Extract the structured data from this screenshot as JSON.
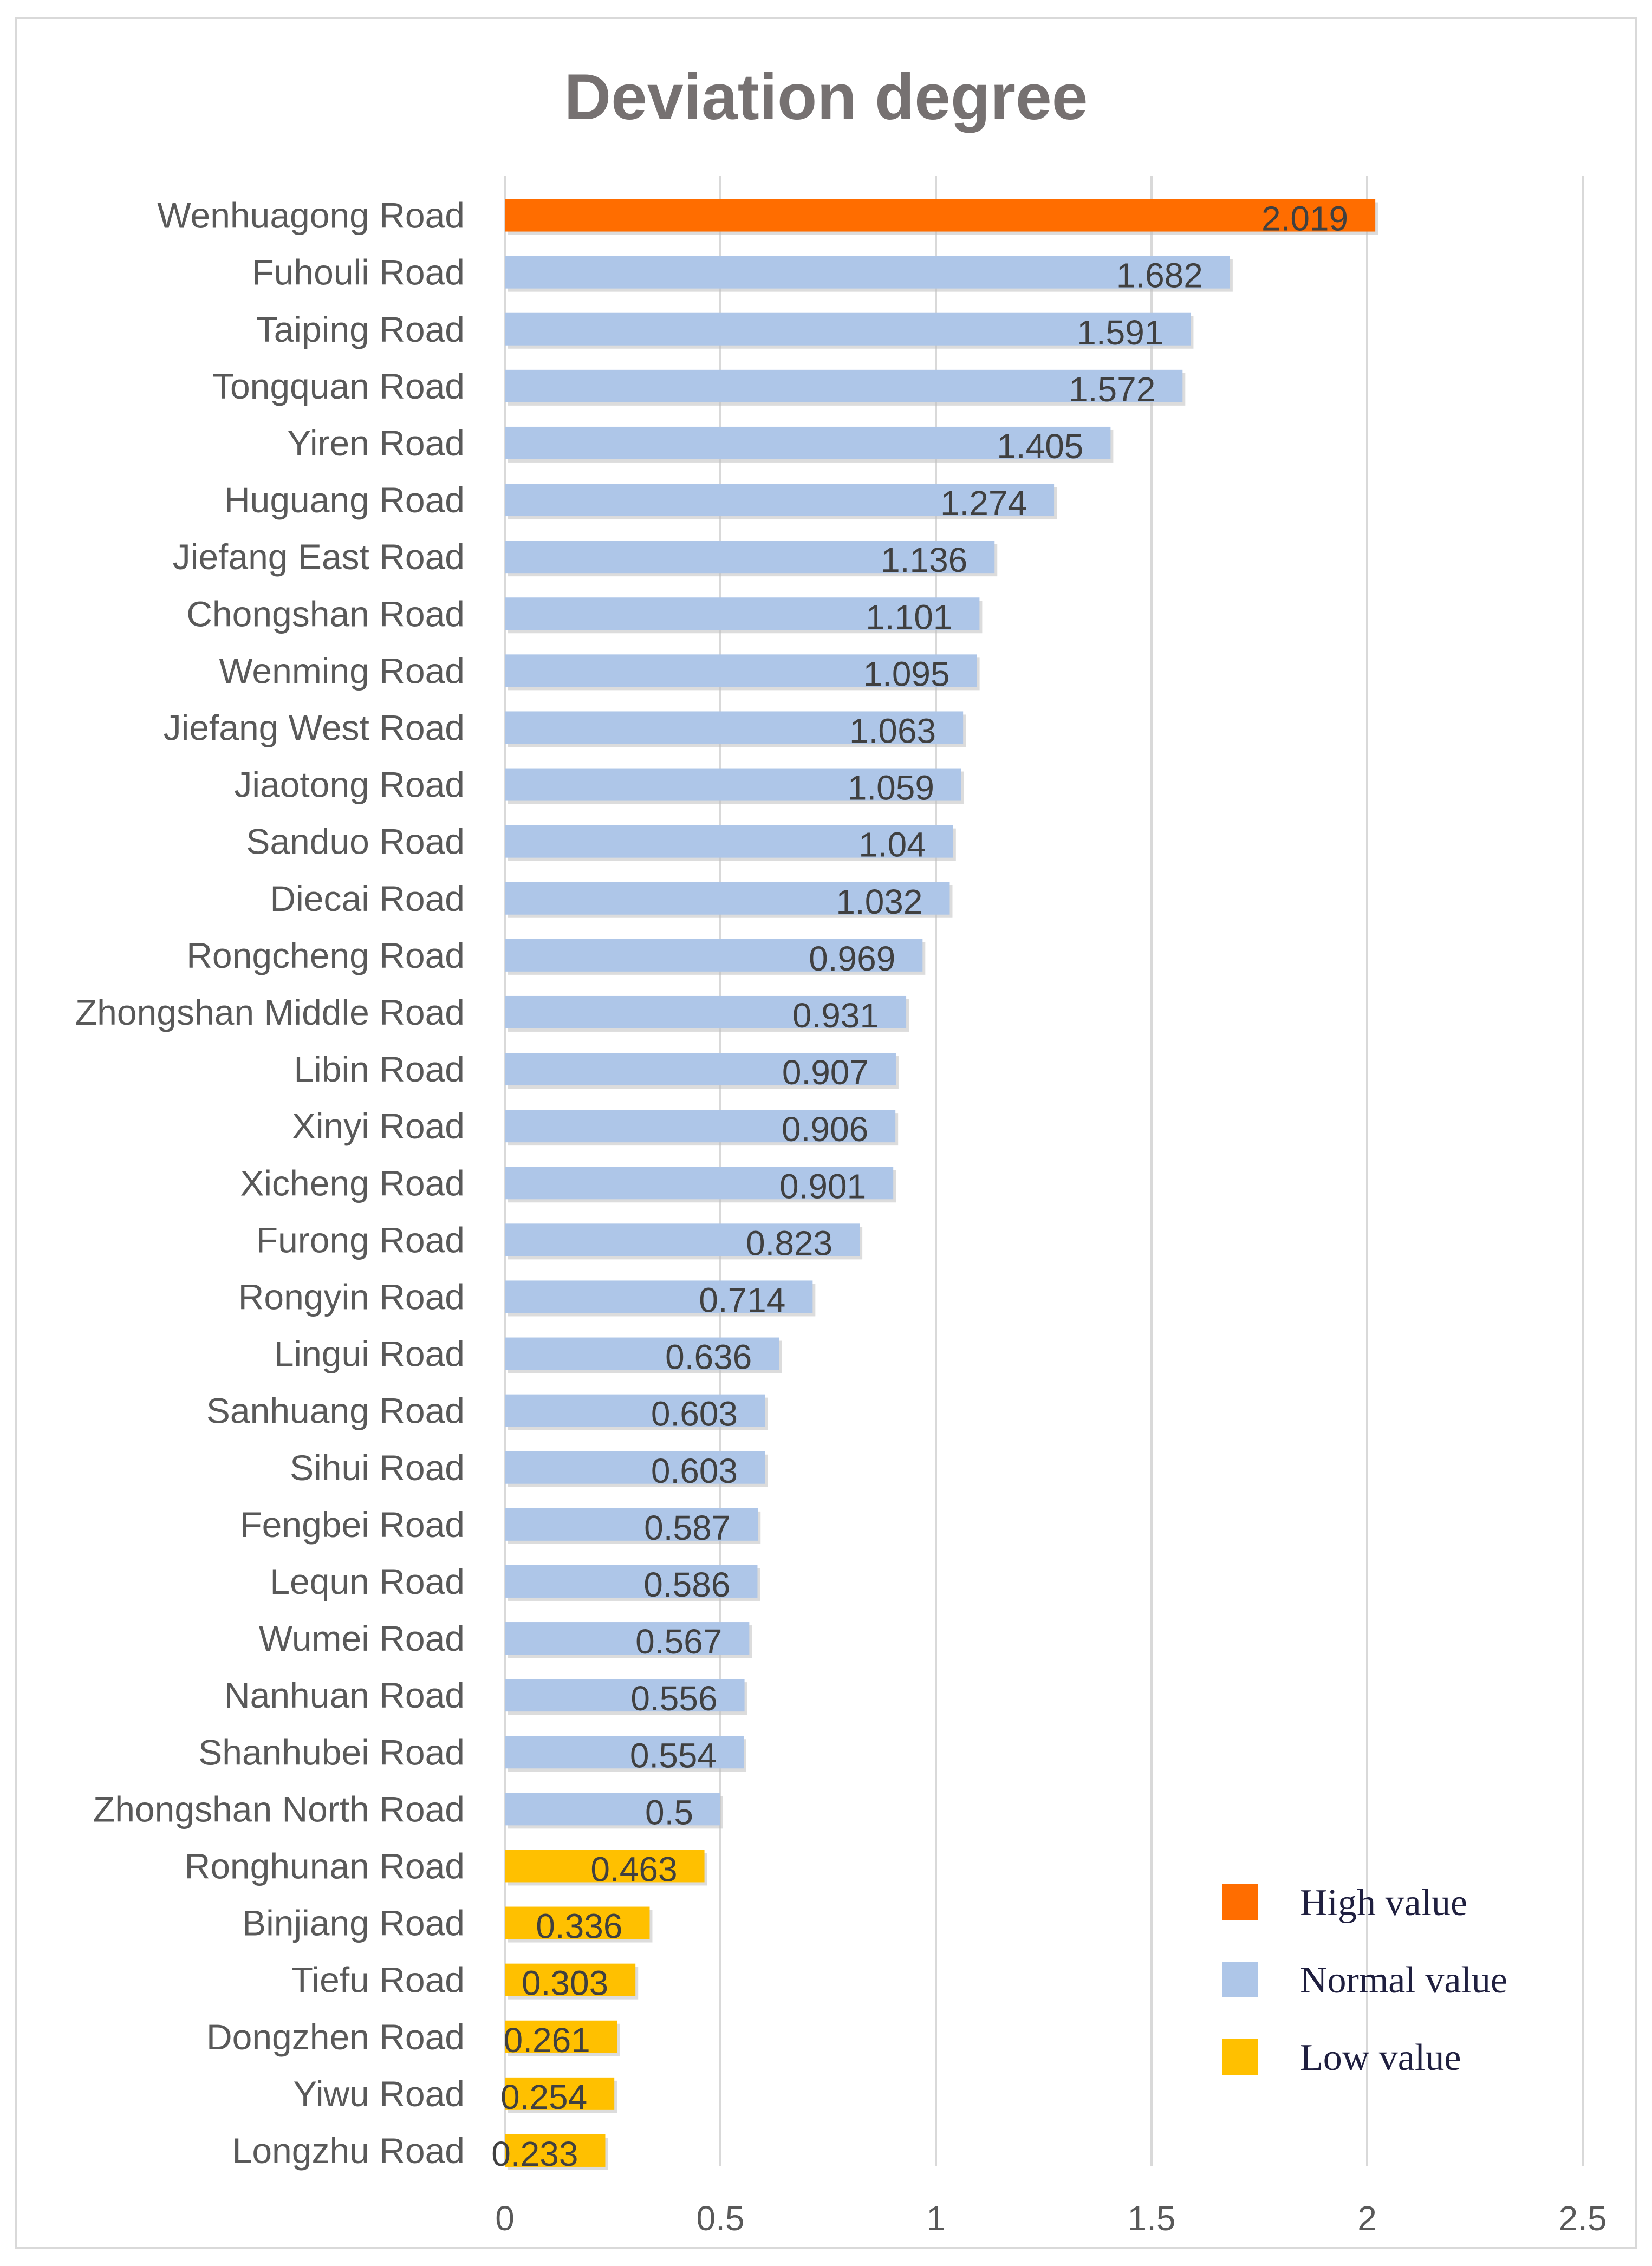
{
  "chart_data": {
    "type": "bar",
    "orientation": "horizontal",
    "title": "Deviation degree",
    "xlabel": "",
    "ylabel": "",
    "xlim": [
      0,
      2.5
    ],
    "x_ticks": [
      "0",
      "0.5",
      "1",
      "1.5",
      "2",
      "2.5"
    ],
    "grid": "vertical",
    "legend_position": "bottom-right",
    "legend": [
      {
        "label": "High value",
        "color": "#ff6d00"
      },
      {
        "label": "Normal value",
        "color": "#aec6e8"
      },
      {
        "label": "Low value",
        "color": "#ffc000"
      }
    ],
    "bars": [
      {
        "category": "Wenhuagong Road",
        "value": 2.019,
        "label": "2.019",
        "group": "High value"
      },
      {
        "category": "Fuhouli Road",
        "value": 1.682,
        "label": "1.682",
        "group": "Normal value"
      },
      {
        "category": "Taiping Road",
        "value": 1.591,
        "label": "1.591",
        "group": "Normal value"
      },
      {
        "category": "Tongquan Road",
        "value": 1.572,
        "label": "1.572",
        "group": "Normal value"
      },
      {
        "category": "Yiren Road",
        "value": 1.405,
        "label": "1.405",
        "group": "Normal value"
      },
      {
        "category": "Huguang Road",
        "value": 1.274,
        "label": "1.274",
        "group": "Normal value"
      },
      {
        "category": "Jiefang East Road",
        "value": 1.136,
        "label": "1.136",
        "group": "Normal value"
      },
      {
        "category": "Chongshan Road",
        "value": 1.101,
        "label": "1.101",
        "group": "Normal value"
      },
      {
        "category": "Wenming Road",
        "value": 1.095,
        "label": "1.095",
        "group": "Normal value"
      },
      {
        "category": "Jiefang West Road",
        "value": 1.063,
        "label": "1.063",
        "group": "Normal value"
      },
      {
        "category": "Jiaotong Road",
        "value": 1.059,
        "label": "1.059",
        "group": "Normal value"
      },
      {
        "category": "Sanduo Road",
        "value": 1.04,
        "label": "1.04",
        "group": "Normal value"
      },
      {
        "category": "Diecai Road",
        "value": 1.032,
        "label": "1.032",
        "group": "Normal value"
      },
      {
        "category": "Rongcheng Road",
        "value": 0.969,
        "label": "0.969",
        "group": "Normal value"
      },
      {
        "category": "Zhongshan Middle Road",
        "value": 0.931,
        "label": "0.931",
        "group": "Normal value"
      },
      {
        "category": "Libin Road",
        "value": 0.907,
        "label": "0.907",
        "group": "Normal value"
      },
      {
        "category": "Xinyi Road",
        "value": 0.906,
        "label": "0.906",
        "group": "Normal value"
      },
      {
        "category": "Xicheng Road",
        "value": 0.901,
        "label": "0.901",
        "group": "Normal value"
      },
      {
        "category": "Furong Road",
        "value": 0.823,
        "label": "0.823",
        "group": "Normal value"
      },
      {
        "category": "Rongyin Road",
        "value": 0.714,
        "label": "0.714",
        "group": "Normal value"
      },
      {
        "category": "Lingui Road",
        "value": 0.636,
        "label": "0.636",
        "group": "Normal value"
      },
      {
        "category": "Sanhuang Road",
        "value": 0.603,
        "label": "0.603",
        "group": "Normal value"
      },
      {
        "category": "Sihui Road",
        "value": 0.603,
        "label": "0.603",
        "group": "Normal value"
      },
      {
        "category": "Fengbei Road",
        "value": 0.587,
        "label": "0.587",
        "group": "Normal value"
      },
      {
        "category": "Lequn Road",
        "value": 0.586,
        "label": "0.586",
        "group": "Normal value"
      },
      {
        "category": "Wumei Road",
        "value": 0.567,
        "label": "0.567",
        "group": "Normal value"
      },
      {
        "category": "Nanhuan Road",
        "value": 0.556,
        "label": "0.556",
        "group": "Normal value"
      },
      {
        "category": "Shanhubei Road",
        "value": 0.554,
        "label": "0.554",
        "group": "Normal value"
      },
      {
        "category": "Zhongshan North Road",
        "value": 0.5,
        "label": "0.5",
        "group": "Normal value"
      },
      {
        "category": "Ronghunan Road",
        "value": 0.463,
        "label": "0.463",
        "group": "Low value"
      },
      {
        "category": "Binjiang Road",
        "value": 0.336,
        "label": "0.336",
        "group": "Low value"
      },
      {
        "category": "Tiefu Road",
        "value": 0.303,
        "label": "0.303",
        "group": "Low value"
      },
      {
        "category": "Dongzhen Road",
        "value": 0.261,
        "label": "0.261",
        "group": "Low value"
      },
      {
        "category": "Yiwu Road",
        "value": 0.254,
        "label": "0.254",
        "group": "Low value"
      },
      {
        "category": "Longzhu Road",
        "value": 0.233,
        "label": "0.233",
        "group": "Low value"
      }
    ]
  }
}
